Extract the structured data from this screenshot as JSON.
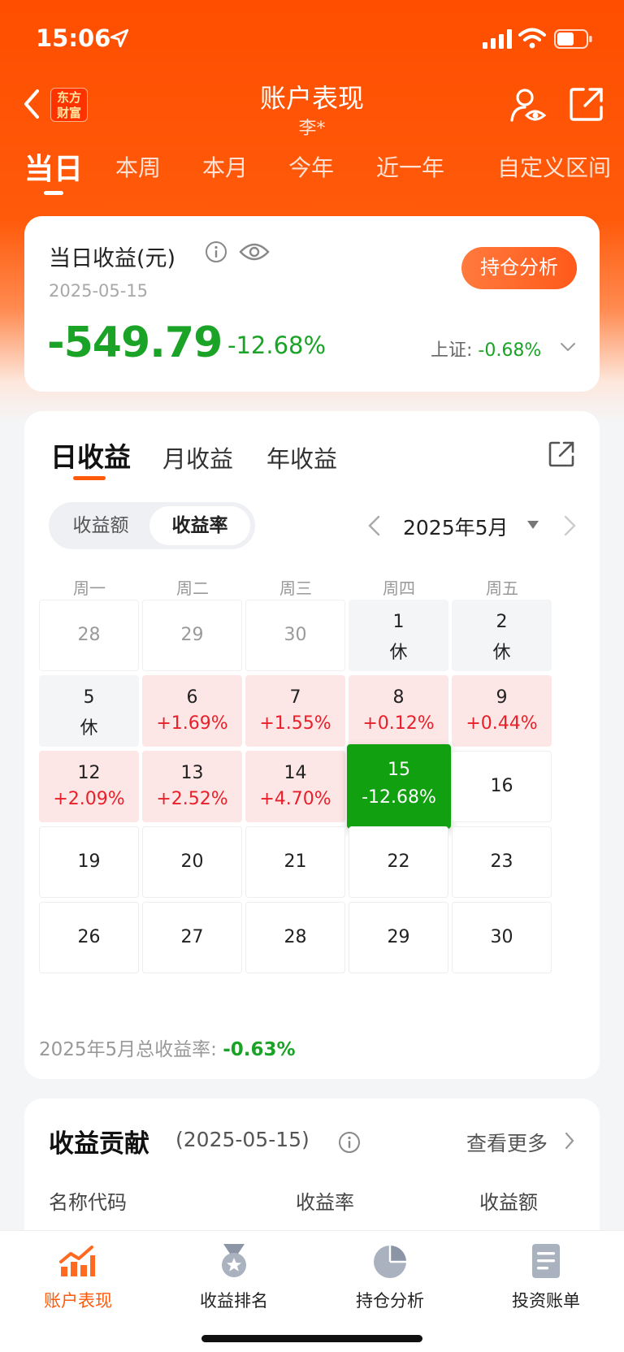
{
  "status_bar": {
    "time": "15:06"
  },
  "nav": {
    "logo_line1": "东方",
    "logo_line2": "财富",
    "title": "账户表现",
    "subtitle": "李*"
  },
  "period_tabs": [
    "当日",
    "本周",
    "本月",
    "今年",
    "近一年",
    "自定义区间"
  ],
  "summary": {
    "label": "当日收益(元)",
    "date": "2025-05-15",
    "button": "持仓分析",
    "value": "-549.79",
    "percent": "-12.68%",
    "index_label": "上证:",
    "index_value": "-0.68%"
  },
  "calendar": {
    "tabs": [
      "日收益",
      "月收益",
      "年收益"
    ],
    "segment": [
      "收益额",
      "收益率"
    ],
    "month": "2025年5月",
    "weekdays": [
      "周一",
      "周二",
      "周三",
      "周四",
      "周五"
    ],
    "days": [
      {
        "d": "28",
        "kind": "out"
      },
      {
        "d": "29",
        "kind": "out"
      },
      {
        "d": "30",
        "kind": "out"
      },
      {
        "d": "1",
        "kind": "hol",
        "s": "休"
      },
      {
        "d": "2",
        "kind": "hol",
        "s": "休"
      },
      {
        "d": "5",
        "kind": "hol",
        "s": "休"
      },
      {
        "d": "6",
        "kind": "up",
        "s": "+1.69%"
      },
      {
        "d": "7",
        "kind": "up",
        "s": "+1.55%"
      },
      {
        "d": "8",
        "kind": "up",
        "s": "+0.12%"
      },
      {
        "d": "9",
        "kind": "up",
        "s": "+0.44%"
      },
      {
        "d": "12",
        "kind": "up",
        "s": "+2.09%"
      },
      {
        "d": "13",
        "kind": "up",
        "s": "+2.52%"
      },
      {
        "d": "14",
        "kind": "up",
        "s": "+4.70%"
      },
      {
        "d": "15",
        "kind": "down",
        "s": "-12.68%"
      },
      {
        "d": "16",
        "kind": "plain"
      },
      {
        "d": "19",
        "kind": "plain"
      },
      {
        "d": "20",
        "kind": "plain"
      },
      {
        "d": "21",
        "kind": "plain"
      },
      {
        "d": "22",
        "kind": "plain"
      },
      {
        "d": "23",
        "kind": "plain"
      },
      {
        "d": "26",
        "kind": "plain"
      },
      {
        "d": "27",
        "kind": "plain"
      },
      {
        "d": "28",
        "kind": "plain"
      },
      {
        "d": "29",
        "kind": "plain"
      },
      {
        "d": "30",
        "kind": "plain"
      }
    ],
    "total_label": "2025年5月总收益率:",
    "total_value": "-0.63%"
  },
  "contribution": {
    "title": "收益贡献",
    "date": "(2025-05-15)",
    "more": "查看更多",
    "columns": [
      "名称代码",
      "收益率",
      "收益额"
    ]
  },
  "tabbar": {
    "items": [
      {
        "label": "账户表现",
        "icon": "chart-trend-icon"
      },
      {
        "label": "收益排名",
        "icon": "medal-icon"
      },
      {
        "label": "持仓分析",
        "icon": "pie-chart-icon"
      },
      {
        "label": "投资账单",
        "icon": "document-icon"
      }
    ]
  },
  "colors": {
    "brand": "#ff5a0a",
    "up": "#e8202a",
    "down": "#1aa326"
  }
}
